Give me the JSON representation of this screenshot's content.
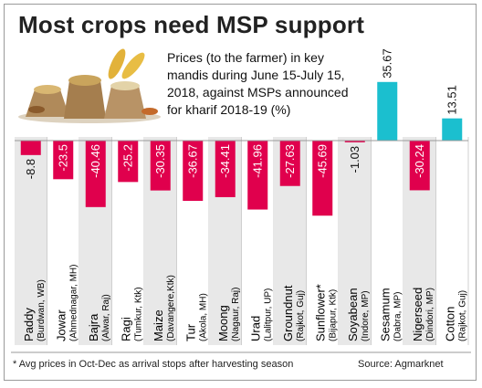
{
  "title": "Most crops need MSP support",
  "subtitle": "Prices (to the farmer) in key mandis during June 15-July 15, 2018, against MSPs announced for kharif 2018-19 (%)",
  "footnote": "* Avg prices in Oct-Dec as arrival stops after harvesting season",
  "source": "Source: Agmarknet",
  "colors": {
    "negative": "#e0004d",
    "positive": "#1bbfcf",
    "stripe": "#e8e8e8"
  },
  "chart_data": {
    "type": "bar",
    "title": "Prices (to the farmer) in key mandis during June 15-July 15, 2018, against MSPs announced for kharif 2018-19 (%)",
    "categories": [
      {
        "crop": "Paddy",
        "mandi": "(Burdwan, WB)"
      },
      {
        "crop": "Jowar",
        "mandi": "(Ahmednagar, MH)"
      },
      {
        "crop": "Bajra",
        "mandi": "(Alwar, Raj)"
      },
      {
        "crop": "Ragi",
        "mandi": "(Tumkur, Ktk)"
      },
      {
        "crop": "Maize",
        "mandi": "(Davangere,Ktk)"
      },
      {
        "crop": "Tur",
        "mandi": "(Akola, MH)"
      },
      {
        "crop": "Moong",
        "mandi": "(Nagaur, Raj)"
      },
      {
        "crop": "Urad",
        "mandi": "(Lalitpur, UP)"
      },
      {
        "crop": "Groundnut",
        "mandi": "(Rajkot, Guj)"
      },
      {
        "crop": "Sunflower*",
        "mandi": "(Bijapur, Ktk)"
      },
      {
        "crop": "Soyabean",
        "mandi": "(Indore, MP)"
      },
      {
        "crop": "Sesamum",
        "mandi": "(Dabra, MP)"
      },
      {
        "crop": "Nigerseed",
        "mandi": "(Dindori, MP)"
      },
      {
        "crop": "Cotton",
        "mandi": "(Rajkot, Guj)"
      }
    ],
    "values": [
      -8.8,
      -23.5,
      -40.46,
      -25.2,
      -30.35,
      -36.67,
      -34.41,
      -41.96,
      -27.63,
      -45.69,
      -1.03,
      35.67,
      -30.24,
      13.51
    ],
    "labels": [
      "-8.8",
      "-23.5",
      "-40.46",
      "-25.2",
      "-30.35",
      "-36.67",
      "-34.41",
      "-41.96",
      "-27.63",
      "-45.69",
      "-1.03",
      "35.67",
      "-30.24",
      "13.51"
    ],
    "ylim": [
      -48,
      38
    ],
    "grid": false,
    "legend": "none"
  }
}
